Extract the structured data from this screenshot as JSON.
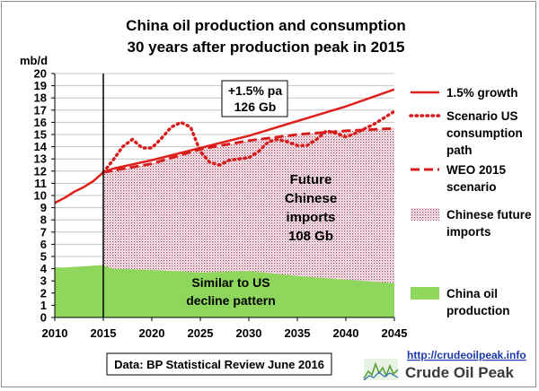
{
  "chart_data": {
    "type": "area",
    "title": "China oil production and consumption",
    "subtitle": "30 years after production peak in 2015",
    "ylabel": "mb/d",
    "xlabel": "",
    "xlim": [
      2010,
      2045
    ],
    "ylim": [
      0,
      20
    ],
    "x_ticks": [
      2010,
      2015,
      2020,
      2025,
      2030,
      2035,
      2040,
      2045
    ],
    "y_ticks": [
      0,
      1,
      2,
      3,
      4,
      5,
      6,
      7,
      8,
      9,
      10,
      11,
      12,
      13,
      14,
      15,
      16,
      17,
      18,
      19,
      20
    ],
    "grid": true,
    "legend_position": "right",
    "peak_year_marker": 2015,
    "series": [
      {
        "name": "1.5% growth",
        "style": "solid-line",
        "color": "#e0201b",
        "x": [
          2010,
          2011,
          2012,
          2013,
          2014,
          2015,
          2016,
          2020,
          2025,
          2030,
          2035,
          2040,
          2045
        ],
        "y": [
          9.4,
          9.8,
          10.3,
          10.7,
          11.2,
          11.9,
          12.2,
          12.9,
          13.9,
          14.9,
          16.1,
          17.3,
          18.7
        ]
      },
      {
        "name": "Scenario US consumption path",
        "style": "dotted-line",
        "color": "#d81b1b",
        "x": [
          2015,
          2016,
          2017,
          2018,
          2019,
          2020,
          2021,
          2022,
          2023,
          2024,
          2025,
          2026,
          2027,
          2028,
          2029,
          2030,
          2031,
          2032,
          2033,
          2034,
          2035,
          2036,
          2037,
          2038,
          2039,
          2040,
          2041,
          2042,
          2043,
          2044,
          2045
        ],
        "y": [
          11.9,
          12.9,
          14.0,
          14.6,
          13.9,
          13.9,
          14.7,
          15.6,
          16.0,
          15.6,
          13.6,
          12.7,
          12.5,
          12.9,
          13.0,
          13.1,
          13.6,
          14.4,
          14.6,
          14.4,
          14.1,
          14.1,
          14.6,
          15.3,
          15.1,
          14.8,
          15.1,
          15.5,
          15.9,
          16.4,
          16.9
        ]
      },
      {
        "name": "WEO 2015 scenario",
        "style": "dashed-line",
        "color": "#d81b1b",
        "x": [
          2015,
          2020,
          2025,
          2030,
          2035,
          2040,
          2045
        ],
        "y": [
          11.9,
          12.6,
          13.8,
          14.5,
          15.0,
          15.3,
          15.5
        ]
      },
      {
        "name": "Chinese future imports",
        "style": "dotted-area",
        "color": "#b04060",
        "x": [
          2015,
          2020,
          2025,
          2030,
          2035,
          2040,
          2045
        ],
        "y": [
          11.9,
          12.6,
          13.8,
          14.5,
          15.0,
          15.3,
          15.5
        ]
      },
      {
        "name": "China oil production",
        "style": "filled-area",
        "color": "#8fd65c",
        "x": [
          2010,
          2011,
          2012,
          2013,
          2014,
          2015,
          2016,
          2020,
          2025,
          2030,
          2035,
          2040,
          2045
        ],
        "y": [
          4.1,
          4.1,
          4.15,
          4.2,
          4.25,
          4.3,
          4.0,
          3.9,
          3.7,
          3.8,
          3.4,
          3.1,
          2.8
        ]
      }
    ],
    "annotations": [
      {
        "text_lines": [
          "+1.5% pa",
          "126 Gb"
        ],
        "boxed": true
      },
      {
        "text_lines": [
          "Future",
          "Chinese",
          "imports",
          "108 Gb"
        ]
      },
      {
        "text_lines": [
          "Similar to US",
          "decline pattern"
        ]
      }
    ],
    "legend": [
      {
        "lines": [
          "1.5% growth"
        ],
        "swatch": "solid-line"
      },
      {
        "lines": [
          "Scenario US",
          "consumption",
          "path"
        ],
        "swatch": "dotted-line"
      },
      {
        "lines": [
          "WEO 2015",
          "scenario"
        ],
        "swatch": "dashed-line"
      },
      {
        "lines": [
          "Chinese future",
          "imports"
        ],
        "swatch": "dotted-area"
      },
      {
        "lines": [
          "China oil",
          "production"
        ],
        "swatch": "filled-area"
      }
    ]
  },
  "source_note": "Data: BP Statistical Review June 2016",
  "branding": {
    "url": "http://crudeoilpeak.info",
    "name": "Crude Oil Peak"
  }
}
